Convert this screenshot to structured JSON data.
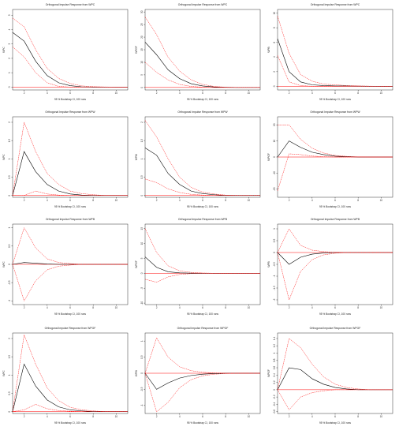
{
  "page_colors": {
    "background": "#ffffff",
    "point_estimate": "#000000",
    "ci_band": "#ff0000",
    "zero_line": "#ff0000",
    "axes": "#000000"
  },
  "chart_data": [
    {
      "type": "line",
      "title": "Orthogonal Impulse Response from WPC",
      "xlabel": "95 % Bootstrap CI, 100 runs",
      "ylabel": "WPC",
      "x": [
        1,
        2,
        3,
        4,
        5,
        6,
        7,
        8,
        9,
        10,
        11
      ],
      "xlim": [
        1,
        11
      ],
      "xticks": [
        2,
        4,
        6,
        8,
        10
      ],
      "ylim": [
        -0.2,
        5.4
      ],
      "yticks": [
        0,
        1,
        2,
        3,
        4,
        5
      ],
      "series": [
        {
          "role": "irf",
          "values": [
            3.8,
            3.2,
            1.8,
            0.8,
            0.3,
            0.1,
            0.02,
            0,
            0,
            0,
            0
          ]
        },
        {
          "role": "upper",
          "values": [
            4.8,
            4.2,
            2.6,
            1.3,
            0.6,
            0.25,
            0.08,
            0.03,
            0.01,
            0,
            0
          ]
        },
        {
          "role": "lower",
          "values": [
            2.8,
            2.1,
            1.0,
            0.3,
            0.05,
            0,
            0,
            0,
            0,
            0,
            0
          ]
        }
      ],
      "hline": 0
    },
    {
      "type": "line",
      "title": "Orthogonal Impulse Response from WPC",
      "xlabel": "95 % Bootstrap CI, 100 runs",
      "ylabel": "WPGF",
      "x": [
        1,
        2,
        3,
        4,
        5,
        6,
        7,
        8,
        9,
        10,
        11
      ],
      "xlim": [
        1,
        11
      ],
      "xticks": [
        2,
        4,
        6,
        8,
        10
      ],
      "ylim": [
        -1,
        31
      ],
      "yticks": [
        0,
        5,
        10,
        15,
        20,
        25,
        30
      ],
      "series": [
        {
          "role": "irf",
          "values": [
            18,
            13,
            7,
            3.5,
            1.5,
            0.6,
            0.2,
            0.05,
            0,
            0,
            0
          ]
        },
        {
          "role": "upper",
          "values": [
            28,
            21,
            12,
            6.5,
            3.0,
            1.2,
            0.4,
            0.1,
            0,
            0,
            0
          ]
        },
        {
          "role": "lower",
          "values": [
            10,
            6,
            3,
            1.2,
            0.4,
            0.1,
            0,
            0,
            0,
            0,
            0
          ]
        }
      ],
      "hline": 0
    },
    {
      "type": "line",
      "title": "Orthogonal Impulse Response from WPC",
      "xlabel": "95 % Bootstrap CI, 100 runs",
      "ylabel": "WPB",
      "x": [
        1,
        2,
        3,
        4,
        5,
        6,
        7,
        8,
        9,
        10,
        11
      ],
      "xlim": [
        1,
        11
      ],
      "xticks": [
        2,
        4,
        6,
        8,
        10
      ],
      "ylim": [
        -0.5,
        10.5
      ],
      "yticks": [
        0,
        2,
        4,
        6,
        8,
        10
      ],
      "series": [
        {
          "role": "irf",
          "values": [
            6.5,
            2.0,
            0.6,
            0.2,
            0.1,
            0.05,
            0.05,
            0.02,
            0,
            0,
            0
          ]
        },
        {
          "role": "upper",
          "values": [
            9.6,
            4.5,
            1.6,
            0.7,
            0.3,
            0.2,
            0.1,
            0.05,
            0.02,
            0,
            0
          ]
        },
        {
          "role": "lower",
          "values": [
            4.2,
            0.6,
            0.1,
            0,
            0,
            0,
            0,
            0,
            0,
            0,
            0
          ]
        }
      ],
      "hline": 0
    },
    {
      "type": "line",
      "title": "Orthogonal Impulse Response from WPW",
      "xlabel": "95 % Bootstrap CI, 100 runs",
      "ylabel": "WPC",
      "x": [
        1,
        2,
        3,
        4,
        5,
        6,
        7,
        8,
        9,
        10,
        11
      ],
      "xlim": [
        1,
        11
      ],
      "xticks": [
        2,
        4,
        6,
        8,
        10
      ],
      "ylim": [
        -0.05,
        2.15
      ],
      "yticks": [
        0.0,
        0.5,
        1.0,
        1.5,
        2.0
      ],
      "series": [
        {
          "role": "irf",
          "values": [
            0,
            1.2,
            0.65,
            0.3,
            0.12,
            0.04,
            0.01,
            0,
            0,
            0,
            0
          ]
        },
        {
          "role": "upper",
          "values": [
            0,
            2.0,
            1.2,
            0.6,
            0.3,
            0.12,
            0.05,
            0.02,
            0,
            0,
            0
          ]
        },
        {
          "role": "lower",
          "values": [
            0,
            0,
            0.12,
            0.04,
            0.01,
            0,
            0,
            0,
            0,
            0,
            0
          ]
        }
      ],
      "hline": 0
    },
    {
      "type": "line",
      "title": "Orthogonal Impulse Response from WPW",
      "xlabel": "95 % Bootstrap CI, 100 runs",
      "ylabel": "WPW",
      "x": [
        1,
        2,
        3,
        4,
        5,
        6,
        7,
        8,
        9,
        10,
        11
      ],
      "xlim": [
        1,
        11
      ],
      "xticks": [
        2,
        4,
        6,
        8,
        10
      ],
      "ylim": [
        -0.05,
        2.15
      ],
      "yticks": [
        0.0,
        0.5,
        1.0,
        1.5,
        2.0
      ],
      "series": [
        {
          "role": "irf",
          "values": [
            1.3,
            1.1,
            0.6,
            0.3,
            0.12,
            0.05,
            0.02,
            0,
            0,
            0,
            0
          ]
        },
        {
          "role": "upper",
          "values": [
            2.05,
            1.6,
            1.0,
            0.5,
            0.22,
            0.09,
            0.04,
            0.01,
            0,
            0,
            0
          ]
        },
        {
          "role": "lower",
          "values": [
            0.45,
            0.35,
            0.18,
            0.08,
            0.03,
            0.01,
            0,
            0,
            0,
            0,
            0
          ]
        }
      ],
      "hline": 0
    },
    {
      "type": "line",
      "title": "Orthogonal Impulse Response from WPW",
      "xlabel": "95 % Bootstrap CI, 100 runs",
      "ylabel": "WPGF",
      "x": [
        1,
        2,
        3,
        4,
        5,
        6,
        7,
        8,
        9,
        10,
        11
      ],
      "xlim": [
        1,
        11
      ],
      "xticks": [
        2,
        4,
        6,
        8,
        10
      ],
      "ylim": [
        -25,
        25
      ],
      "yticks": [
        -20,
        -10,
        0,
        10,
        20
      ],
      "series": [
        {
          "role": "irf",
          "values": [
            0,
            10,
            6,
            3,
            1.5,
            0.5,
            0.2,
            0,
            0,
            0,
            0
          ]
        },
        {
          "role": "upper",
          "values": [
            20,
            20,
            11,
            5.5,
            2.5,
            1.0,
            0.4,
            0.1,
            0,
            0,
            0
          ]
        },
        {
          "role": "lower",
          "values": [
            -21,
            2,
            1.5,
            0.6,
            0.2,
            0,
            0,
            0,
            0,
            0,
            0
          ]
        }
      ],
      "hline": 0
    },
    {
      "type": "line",
      "title": "Orthogonal Impulse Response from WPB",
      "xlabel": "95 % Bootstrap CI, 100 runs",
      "ylabel": "WPC",
      "x": [
        1,
        2,
        3,
        4,
        5,
        6,
        7,
        8,
        9,
        10,
        11
      ],
      "xlim": [
        1,
        11
      ],
      "xticks": [
        2,
        4,
        6,
        8,
        10
      ],
      "ylim": [
        -1.1,
        1.1
      ],
      "yticks": [
        -1.0,
        -0.5,
        0.0,
        0.5,
        1.0
      ],
      "series": [
        {
          "role": "irf",
          "values": [
            0,
            0.05,
            0.03,
            0.01,
            0,
            0,
            0,
            0,
            0,
            0,
            0
          ]
        },
        {
          "role": "upper",
          "values": [
            0,
            1.0,
            0.45,
            0.15,
            0.05,
            0.02,
            0,
            0,
            0,
            0,
            0
          ]
        },
        {
          "role": "lower",
          "values": [
            0,
            -1.0,
            -0.45,
            -0.15,
            -0.05,
            -0.02,
            0,
            0,
            0,
            0,
            0
          ]
        }
      ],
      "hline": 0
    },
    {
      "type": "line",
      "title": "Orthogonal Impulse Response from WPB",
      "xlabel": "95 % Bootstrap CI, 100 runs",
      "ylabel": "WPGF",
      "x": [
        1,
        2,
        3,
        4,
        5,
        6,
        7,
        8,
        9,
        10,
        11
      ],
      "xlim": [
        1,
        11
      ],
      "xticks": [
        2,
        4,
        6,
        8,
        10
      ],
      "ylim": [
        -10.5,
        16.5
      ],
      "yticks": [
        -10,
        -5,
        0,
        5,
        10,
        15
      ],
      "series": [
        {
          "role": "irf",
          "values": [
            5.5,
            2.0,
            0.5,
            0.15,
            0.05,
            0,
            0,
            0,
            0,
            0,
            0
          ]
        },
        {
          "role": "upper",
          "values": [
            15,
            7,
            2.5,
            0.8,
            0.3,
            0.1,
            0,
            0,
            0,
            0,
            0
          ]
        },
        {
          "role": "lower",
          "values": [
            -2,
            -3,
            -1.2,
            -0.4,
            -0.1,
            0,
            0,
            0,
            0,
            0,
            0
          ]
        }
      ],
      "hline": 0
    },
    {
      "type": "line",
      "title": "Orthogonal Impulse Response from WPB",
      "xlabel": "95 % Bootstrap CI, 100 runs",
      "ylabel": "WPB",
      "x": [
        1,
        2,
        3,
        4,
        5,
        6,
        7,
        8,
        9,
        10,
        11
      ],
      "xlim": [
        1,
        11
      ],
      "xticks": [
        2,
        4,
        6,
        8,
        10
      ],
      "ylim": [
        -2.2,
        1.2
      ],
      "yticks": [
        -2.0,
        -1.5,
        -1.0,
        -0.5,
        0.0,
        0.5,
        1.0
      ],
      "series": [
        {
          "role": "irf",
          "values": [
            0,
            -0.5,
            -0.2,
            -0.07,
            -0.02,
            0,
            0,
            0,
            0,
            0,
            0
          ]
        },
        {
          "role": "upper",
          "values": [
            0,
            1.0,
            0.3,
            0.1,
            0.04,
            0.01,
            0,
            0,
            0,
            0,
            0
          ]
        },
        {
          "role": "lower",
          "values": [
            0,
            -2.0,
            -0.8,
            -0.3,
            -0.1,
            -0.03,
            0,
            0,
            0,
            0,
            0
          ]
        }
      ],
      "hline": 0
    },
    {
      "type": "line",
      "title": "Orthogonal Impulse Response from WPGF",
      "xlabel": "95 % Bootstrap CI, 100 runs",
      "ylabel": "WPC",
      "x": [
        1,
        2,
        3,
        4,
        5,
        6,
        7,
        8,
        9,
        10,
        11
      ],
      "xlim": [
        1,
        11
      ],
      "xticks": [
        2,
        4,
        6,
        8,
        10
      ],
      "ylim": [
        -0.05,
        2.15
      ],
      "yticks": [
        0.0,
        0.5,
        1.0,
        1.5,
        2.0
      ],
      "series": [
        {
          "role": "irf",
          "values": [
            0,
            1.3,
            0.7,
            0.32,
            0.13,
            0.05,
            0.02,
            0,
            0,
            0,
            0
          ]
        },
        {
          "role": "upper",
          "values": [
            0,
            2.1,
            1.3,
            0.65,
            0.3,
            0.12,
            0.05,
            0.02,
            0,
            0,
            0
          ]
        },
        {
          "role": "lower",
          "values": [
            0,
            0.05,
            0.2,
            0.08,
            0.03,
            0.01,
            0,
            0,
            0,
            0,
            0
          ]
        }
      ],
      "hline": 0
    },
    {
      "type": "line",
      "title": "Orthogonal Impulse Response from WPGF",
      "xlabel": "95 % Bootstrap CI, 100 runs",
      "ylabel": "WPW",
      "x": [
        1,
        2,
        3,
        4,
        5,
        6,
        7,
        8,
        9,
        10,
        11
      ],
      "xlim": [
        1,
        11
      ],
      "xticks": [
        2,
        4,
        6,
        8,
        10
      ],
      "ylim": [
        -1.25,
        1.25
      ],
      "yticks": [
        -1.0,
        -0.5,
        0.0,
        0.5,
        1.0
      ],
      "series": [
        {
          "role": "irf",
          "values": [
            0,
            -0.5,
            -0.3,
            -0.15,
            -0.07,
            -0.03,
            -0.01,
            0,
            0,
            0,
            0
          ]
        },
        {
          "role": "upper",
          "values": [
            0,
            1.1,
            0.5,
            0.2,
            0.08,
            0.03,
            0.01,
            0,
            0,
            0,
            0
          ]
        },
        {
          "role": "lower",
          "values": [
            0,
            -1.2,
            -0.9,
            -0.45,
            -0.2,
            -0.08,
            -0.03,
            -0.01,
            0,
            0,
            0
          ]
        }
      ],
      "hline": 0
    },
    {
      "type": "line",
      "title": "Orthogonal Impulse Response from WPGF",
      "xlabel": "95 % Bootstrap CI, 100 runs",
      "ylabel": "WPGF",
      "x": [
        1,
        2,
        3,
        4,
        5,
        6,
        7,
        8,
        9,
        10,
        11
      ],
      "xlim": [
        1,
        11
      ],
      "xticks": [
        2,
        4,
        6,
        8,
        10
      ],
      "ylim": [
        -0.65,
        1.55
      ],
      "yticks": [
        -0.6,
        -0.4,
        -0.2,
        0.0,
        0.2,
        0.4,
        0.6,
        0.8,
        1.0,
        1.2,
        1.4
      ],
      "series": [
        {
          "role": "irf",
          "values": [
            0,
            0.6,
            0.55,
            0.3,
            0.15,
            0.06,
            0.02,
            0,
            0,
            0,
            0
          ]
        },
        {
          "role": "upper",
          "values": [
            0,
            1.4,
            1.15,
            0.7,
            0.35,
            0.15,
            0.06,
            0.02,
            0,
            0,
            0
          ]
        },
        {
          "role": "lower",
          "values": [
            0,
            -0.55,
            -0.2,
            -0.08,
            -0.03,
            0,
            0,
            0,
            0,
            0,
            0
          ]
        }
      ],
      "hline": 0
    }
  ]
}
